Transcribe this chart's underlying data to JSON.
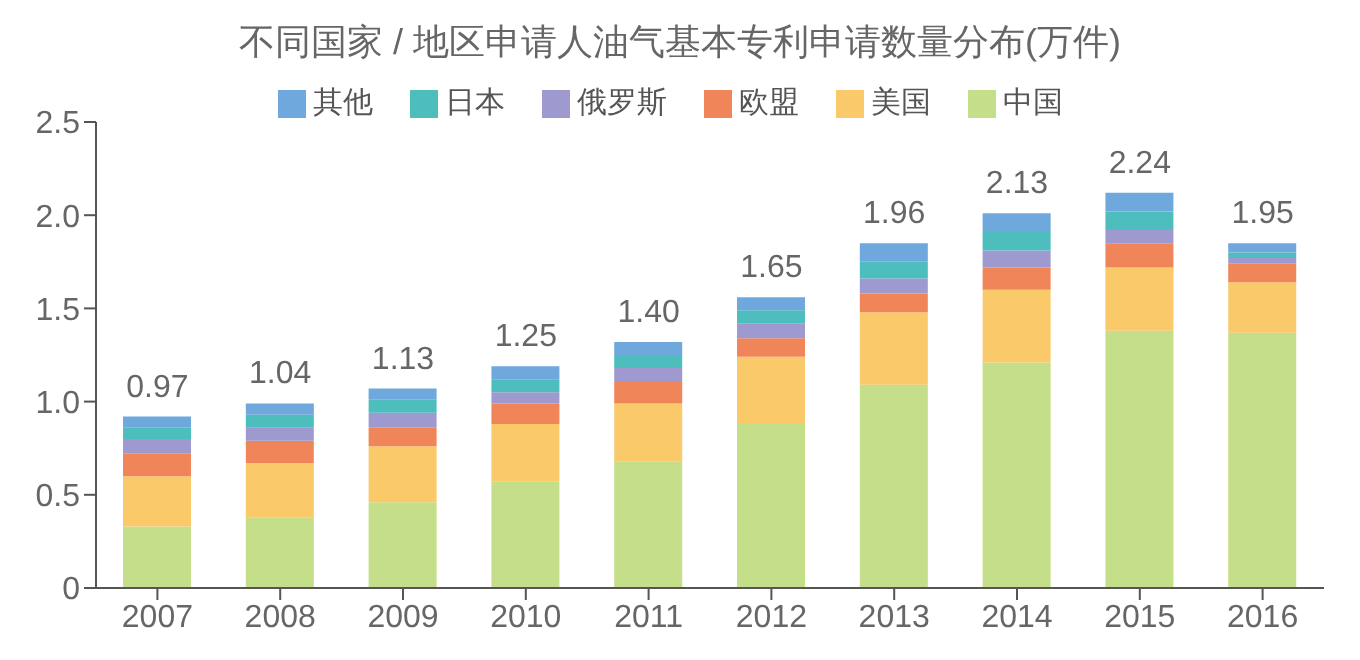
{
  "chart_data": {
    "type": "bar",
    "title": "不同国家 / 地区申请人油气基本专利申请数量分布(万件)",
    "categories": [
      "2007",
      "2008",
      "2009",
      "2010",
      "2011",
      "2012",
      "2013",
      "2014",
      "2015",
      "2016"
    ],
    "stacked": true,
    "legend": "top",
    "grid": false,
    "ylim": [
      0,
      2.5
    ],
    "yticks": [
      0,
      0.5,
      {
        "value": 1,
        "label": "1.0"
      },
      1.5,
      {
        "value": 2,
        "label": "2.0"
      },
      2.5
    ],
    "series": [
      {
        "name": "中国",
        "color": "#c5de8a",
        "values": [
          0.33,
          0.38,
          0.46,
          0.57,
          0.68,
          0.88,
          1.09,
          1.21,
          1.38,
          1.37
        ]
      },
      {
        "name": "美国",
        "color": "#f9c96a",
        "values": [
          0.27,
          0.29,
          0.3,
          0.31,
          0.31,
          0.36,
          0.39,
          0.39,
          0.34,
          0.27
        ]
      },
      {
        "name": "欧盟",
        "color": "#f0855a",
        "values": [
          0.12,
          0.12,
          0.1,
          0.11,
          0.12,
          0.1,
          0.1,
          0.12,
          0.13,
          0.1
        ]
      },
      {
        "name": "俄罗斯",
        "color": "#9e9ad0",
        "values": [
          0.08,
          0.07,
          0.08,
          0.06,
          0.07,
          0.08,
          0.08,
          0.09,
          0.07,
          0.03
        ]
      },
      {
        "name": "日本",
        "color": "#4dbdbd",
        "values": [
          0.06,
          0.07,
          0.07,
          0.07,
          0.07,
          0.07,
          0.09,
          0.1,
          0.1,
          0.03
        ]
      },
      {
        "name": "其他",
        "color": "#6fa8dc",
        "values": [
          0.06,
          0.06,
          0.06,
          0.07,
          0.07,
          0.07,
          0.1,
          0.1,
          0.1,
          0.05
        ]
      }
    ],
    "annotations": [
      {
        "text": "0.97",
        "x": "2007",
        "y": 0.92
      },
      {
        "text": "1.04",
        "x": "2008",
        "y": 0.99
      },
      {
        "text": "1.13",
        "x": "2009",
        "y": 1.07
      },
      {
        "text": "1.25",
        "x": "2010",
        "y": 1.19
      },
      {
        "text": "1.40",
        "x": "2011",
        "y": 1.32
      },
      {
        "text": "1.65",
        "x": "2012",
        "y": 1.56
      },
      {
        "text": "1.96",
        "x": "2013",
        "y": 1.85
      },
      {
        "text": "2.13",
        "x": "2014",
        "y": 2.01
      },
      {
        "text": "2.24",
        "x": "2015",
        "y": 2.12
      },
      {
        "text": "1.95",
        "x": "2016",
        "y": 1.85
      }
    ]
  }
}
